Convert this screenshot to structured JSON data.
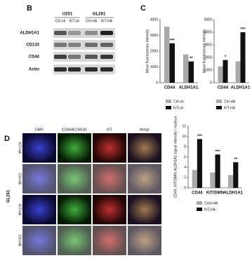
{
  "blot": {
    "label": "B",
    "groups": [
      "U251",
      "GL261"
    ],
    "lanes": [
      "Ctrl-sh",
      "KIT-sh",
      "Ctrl-HA",
      "KIT-HA"
    ],
    "proteins": [
      "ALDH1A1",
      "CD133",
      "CD44",
      "Actin"
    ]
  },
  "panel_labels": [
    "C",
    "D"
  ],
  "micro": {
    "columns": [
      "DAPI",
      "CD44/ALDH1A1",
      "KIT",
      "Merge"
    ],
    "rows": [
      "KIT-HA",
      "Ctrl-HA",
      "KIT-HA",
      "Ctrl-HA"
    ],
    "side": "GL261"
  },
  "chart_data": [
    {
      "type": "bar",
      "y_label": "Mean fluorescence intensity",
      "categories": [
        "CD44",
        "ALDH1A1"
      ],
      "ylim": [
        0,
        4000
      ],
      "yticks": [
        0,
        1000,
        2000,
        3000,
        4000
      ],
      "series": [
        {
          "name": "Ctrl-sh",
          "color": "#aaaaaa",
          "values": [
            3550,
            1800
          ]
        },
        {
          "name": "KIT-sh",
          "color": "#111111",
          "values": [
            2500,
            1350
          ],
          "significance": [
            "***",
            "**"
          ]
        }
      ]
    },
    {
      "type": "bar",
      "y_label": "Mean fluorescence intensity",
      "categories": [
        "CD44",
        "ALDH1A1"
      ],
      "ylim": [
        0,
        5000
      ],
      "yticks": [
        0,
        1000,
        2000,
        3000,
        4000,
        5000
      ],
      "series": [
        {
          "name": "Ctrl-HA",
          "color": "#aaaaaa",
          "values": [
            1300,
            1700
          ]
        },
        {
          "name": "KIT-HA",
          "color": "#111111",
          "values": [
            1800,
            4000
          ],
          "significance": [
            "*",
            "***"
          ]
        }
      ]
    },
    {
      "type": "bar",
      "y_label": "CD44, KIT/DMN, ALDH1A1 signal intensity / nucleus",
      "categories": [
        "CD44",
        "KIT/DMN",
        "ALDH1A1"
      ],
      "ylim": [
        0,
        12
      ],
      "yticks": [
        0,
        2,
        4,
        6,
        8,
        10,
        12
      ],
      "series": [
        {
          "name": "Cntrl-HA",
          "color": "#aaaaaa",
          "values": [
            3.5,
            3,
            2.5
          ]
        },
        {
          "name": "KIT-HA",
          "color": "#111111",
          "values": [
            9.5,
            6.5,
            5
          ],
          "significance": [
            "***",
            "***",
            "**"
          ]
        }
      ]
    }
  ]
}
